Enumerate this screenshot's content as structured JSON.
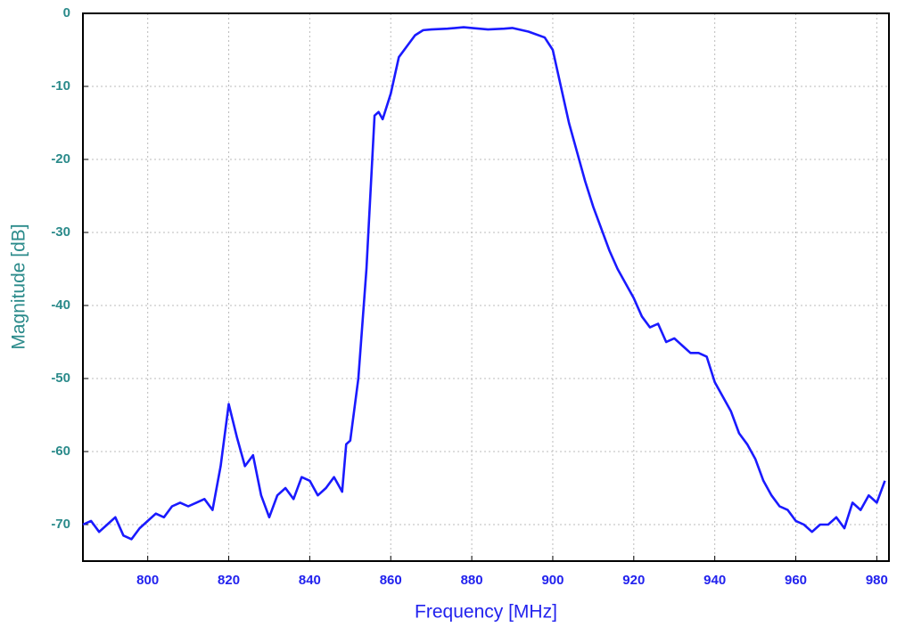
{
  "chart_data": {
    "type": "line",
    "xlabel": "Frequency [MHz]",
    "ylabel": "Magnitude [dB]",
    "x": [
      784,
      786,
      788,
      790,
      792,
      794,
      796,
      798,
      800,
      802,
      804,
      806,
      808,
      810,
      812,
      814,
      816,
      818,
      820,
      822,
      824,
      826,
      828,
      830,
      832,
      834,
      836,
      838,
      840,
      842,
      844,
      846,
      848,
      849,
      850,
      852,
      854,
      856,
      857,
      858,
      860,
      862,
      864,
      866,
      868,
      870,
      874,
      878,
      880,
      884,
      888,
      890,
      894,
      898,
      900,
      902,
      904,
      906,
      908,
      910,
      912,
      914,
      916,
      918,
      920,
      922,
      924,
      926,
      928,
      930,
      932,
      934,
      936,
      938,
      940,
      942,
      944,
      946,
      948,
      950,
      952,
      954,
      956,
      958,
      960,
      962,
      964,
      966,
      968,
      970,
      972,
      974,
      976,
      978,
      980,
      982
    ],
    "values": [
      -70,
      -69.5,
      -71,
      -70,
      -69,
      -71.5,
      -72,
      -70.5,
      -69.5,
      -68.5,
      -69,
      -67.5,
      -67,
      -67.5,
      -67,
      -66.5,
      -68,
      -62,
      -53.5,
      -58,
      -62,
      -60.5,
      -66,
      -69,
      -66,
      -65,
      -66.5,
      -63.5,
      -64,
      -66,
      -65,
      -63.5,
      -65.5,
      -59,
      -58.5,
      -50,
      -35,
      -14,
      -13.5,
      -14.5,
      -11,
      -6,
      -4.5,
      -3,
      -2.3,
      -2.2,
      -2.1,
      -1.9,
      -2,
      -2.2,
      -2.1,
      -2,
      -2.5,
      -3.3,
      -5,
      -10,
      -15,
      -19,
      -23,
      -26.5,
      -29.5,
      -32.5,
      -35,
      -37,
      -39,
      -41.5,
      -43,
      -42.5,
      -45,
      -44.5,
      -45.5,
      -46.5,
      -46.5,
      -47,
      -50.5,
      -52.5,
      -54.5,
      -57.5,
      -59,
      -61,
      -64,
      -66,
      -67.5,
      -68,
      -69.5,
      -70,
      -71,
      -70,
      -70,
      -69,
      -70.5,
      -67,
      -68,
      -66,
      -67,
      -64
    ],
    "color": "#1a1aff",
    "xlim": [
      784,
      983
    ],
    "ylim": [
      -75,
      0
    ],
    "xticks": [
      800,
      820,
      840,
      860,
      880,
      900,
      920,
      940,
      960,
      980
    ],
    "yticks": [
      0,
      -10,
      -20,
      -30,
      -40,
      -50,
      -60,
      -70
    ],
    "grid": true
  }
}
